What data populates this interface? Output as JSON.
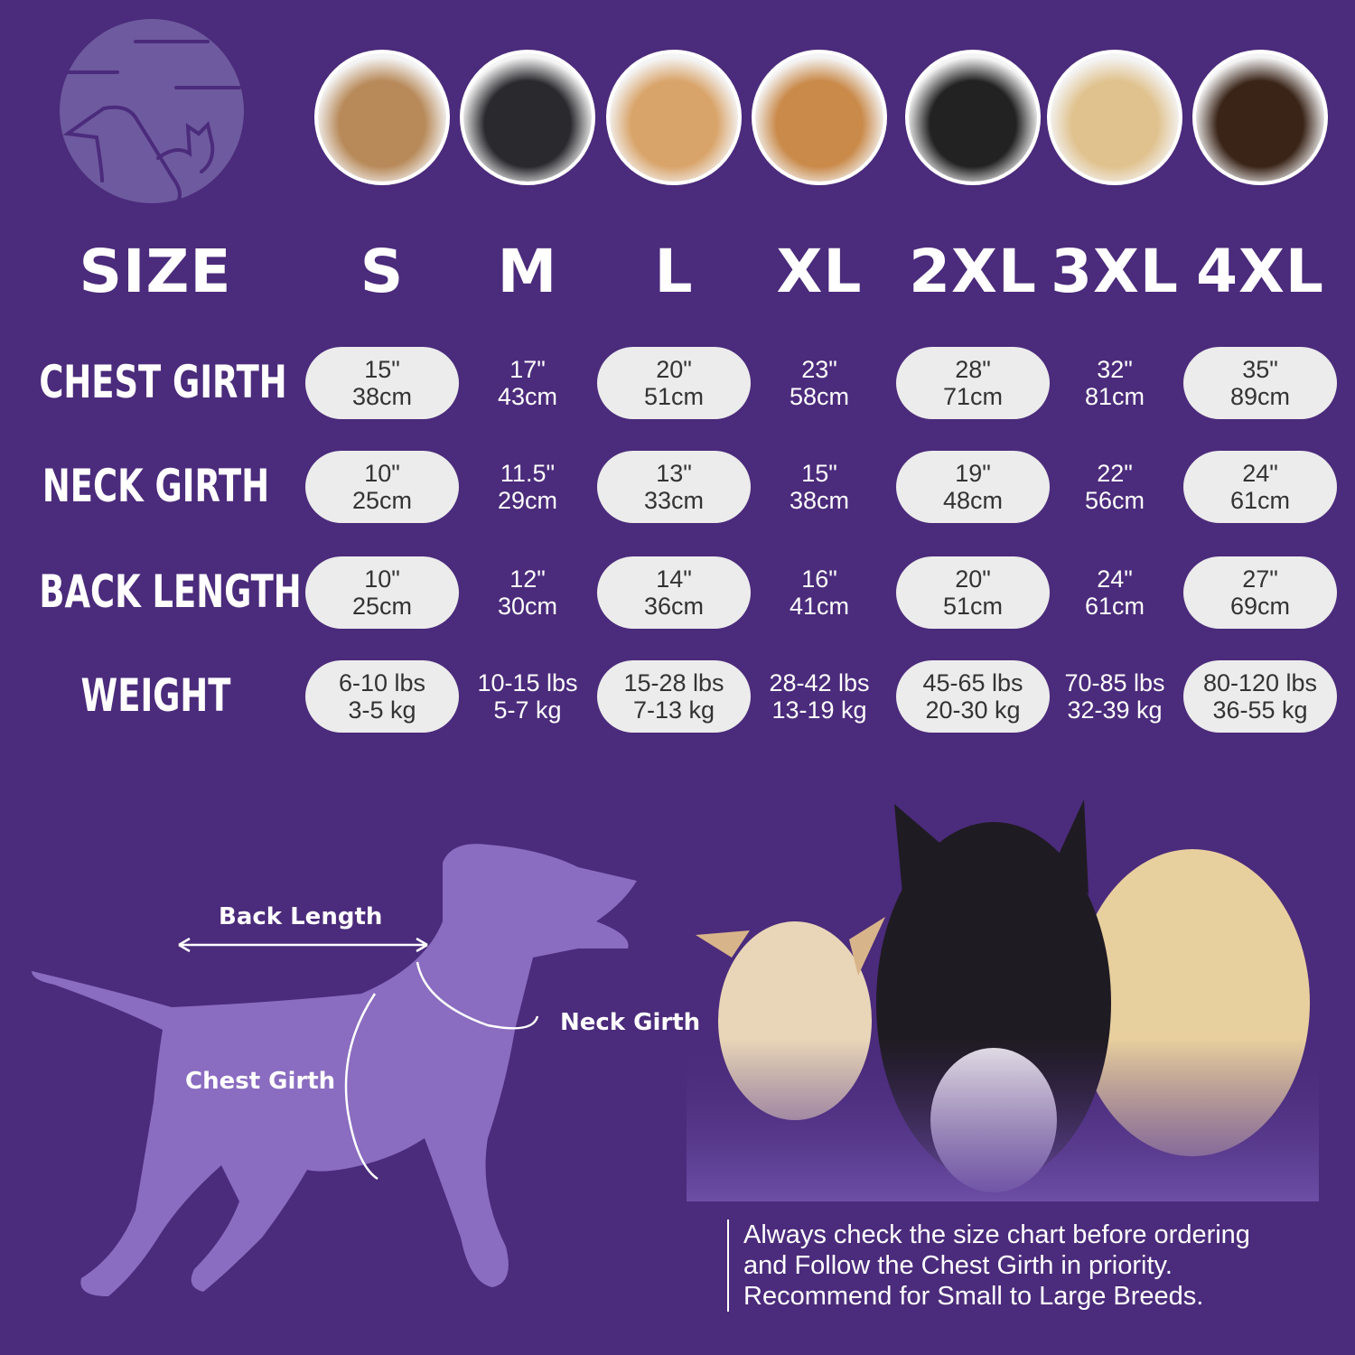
{
  "colors": {
    "background": "#4b2b7b",
    "pill": "#ececec",
    "silhouette": "#8a6cc0",
    "logo": "#6e5a9e"
  },
  "logo": {
    "icon": "dog-cat-logo"
  },
  "breeds": [
    "shih-tzu",
    "boston-terrier",
    "cocker-spaniel",
    "beagle",
    "border-collie",
    "labrador",
    "doberman"
  ],
  "size_header": "SIZE",
  "sizes": [
    "S",
    "M",
    "L",
    "XL",
    "2XL",
    "3XL",
    "4XL"
  ],
  "rows": [
    {
      "label": "CHEST GIRTH",
      "values": [
        [
          "15\"",
          "38cm"
        ],
        [
          "17\"",
          "43cm"
        ],
        [
          "20\"",
          "51cm"
        ],
        [
          "23\"",
          "58cm"
        ],
        [
          "28\"",
          "71cm"
        ],
        [
          "32\"",
          "81cm"
        ],
        [
          "35\"",
          "89cm"
        ]
      ]
    },
    {
      "label": "NECK GIRTH",
      "values": [
        [
          "10\"",
          "25cm"
        ],
        [
          "11.5\"",
          "29cm"
        ],
        [
          "13\"",
          "33cm"
        ],
        [
          "15\"",
          "38cm"
        ],
        [
          "19\"",
          "48cm"
        ],
        [
          "22\"",
          "56cm"
        ],
        [
          "24\"",
          "61cm"
        ]
      ]
    },
    {
      "label": "BACK LENGTH",
      "values": [
        [
          "10\"",
          "25cm"
        ],
        [
          "12\"",
          "30cm"
        ],
        [
          "14\"",
          "36cm"
        ],
        [
          "16\"",
          "41cm"
        ],
        [
          "20\"",
          "51cm"
        ],
        [
          "24\"",
          "61cm"
        ],
        [
          "27\"",
          "69cm"
        ]
      ]
    },
    {
      "label": "WEIGHT",
      "values": [
        [
          "6-10 lbs",
          "3-5 kg"
        ],
        [
          "10-15 lbs",
          "5-7 kg"
        ],
        [
          "15-28 lbs",
          "7-13 kg"
        ],
        [
          "28-42 lbs",
          "13-19 kg"
        ],
        [
          "45-65 lbs",
          "20-30 kg"
        ],
        [
          "70-85 lbs",
          "32-39 kg"
        ],
        [
          "80-120 lbs",
          "36-55 kg"
        ]
      ]
    }
  ],
  "diagram": {
    "back_length": "Back Length",
    "neck_girth": "Neck Girth",
    "chest_girth": "Chest Girth"
  },
  "note": [
    "Always check the size chart before ordering",
    "and Follow the Chest Girth in priority.",
    "Recommend for Small to Large Breeds."
  ]
}
